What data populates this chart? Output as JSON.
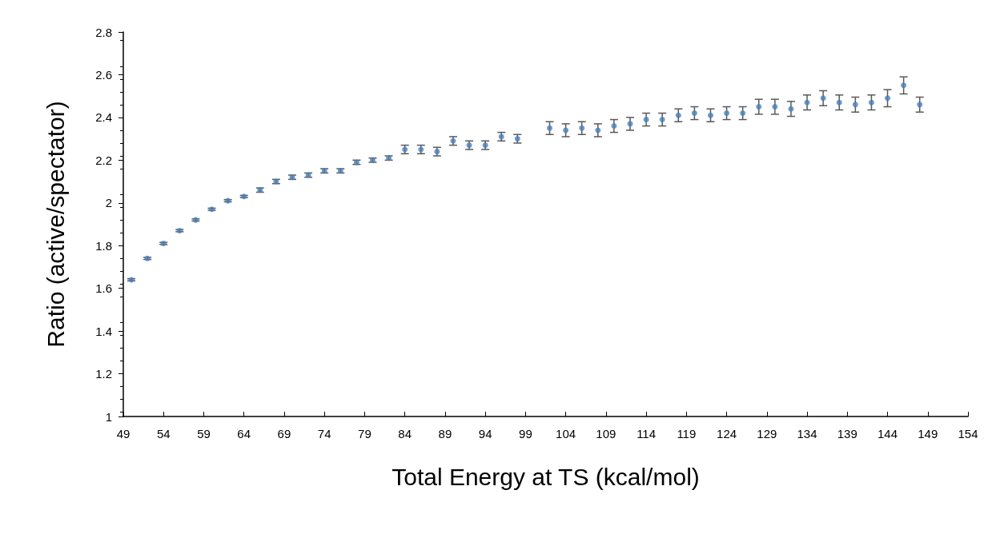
{
  "chart_data": {
    "type": "scatter",
    "xlabel": "Total Energy at TS (kcal/mol)",
    "ylabel": "Ratio (active/spectator)",
    "x": [
      50,
      52,
      54,
      56,
      58,
      60,
      62,
      64,
      66,
      68,
      70,
      72,
      74,
      76,
      78,
      80,
      82,
      84,
      86,
      88,
      90,
      92,
      94,
      96,
      98,
      102,
      104,
      106,
      108,
      110,
      112,
      114,
      116,
      118,
      120,
      122,
      124,
      126,
      128,
      130,
      132,
      134,
      136,
      138,
      140,
      142,
      144,
      146,
      148
    ],
    "values": [
      1.64,
      1.74,
      1.81,
      1.87,
      1.92,
      1.97,
      2.01,
      2.03,
      2.06,
      2.1,
      2.12,
      2.13,
      2.15,
      2.15,
      2.19,
      2.2,
      2.21,
      2.25,
      2.25,
      2.24,
      2.29,
      2.27,
      2.27,
      2.31,
      2.3,
      2.35,
      2.34,
      2.35,
      2.34,
      2.36,
      2.37,
      2.39,
      2.39,
      2.41,
      2.42,
      2.41,
      2.42,
      2.42,
      2.45,
      2.45,
      2.44,
      2.47,
      2.49,
      2.47,
      2.46,
      2.47,
      2.49,
      2.55,
      2.46
    ],
    "errors": [
      0.005,
      0.005,
      0.005,
      0.005,
      0.005,
      0.005,
      0.005,
      0.005,
      0.01,
      0.01,
      0.01,
      0.01,
      0.01,
      0.01,
      0.01,
      0.01,
      0.01,
      0.02,
      0.02,
      0.02,
      0.02,
      0.02,
      0.02,
      0.02,
      0.02,
      0.03,
      0.03,
      0.03,
      0.03,
      0.03,
      0.03,
      0.03,
      0.03,
      0.03,
      0.03,
      0.03,
      0.03,
      0.03,
      0.035,
      0.035,
      0.035,
      0.035,
      0.035,
      0.035,
      0.035,
      0.035,
      0.04,
      0.04,
      0.035
    ],
    "color": "#4a7ebb",
    "marker": "circle",
    "xlim": [
      49,
      154
    ],
    "xticks": [
      49,
      54,
      59,
      64,
      69,
      74,
      79,
      84,
      89,
      94,
      99,
      104,
      109,
      114,
      119,
      124,
      129,
      134,
      139,
      144,
      149,
      154
    ],
    "ylim": [
      1,
      2.8
    ],
    "yticks": [
      1,
      1.2,
      1.4,
      1.6,
      1.8,
      2,
      2.2,
      2.4,
      2.6,
      2.8
    ],
    "grid": false
  }
}
